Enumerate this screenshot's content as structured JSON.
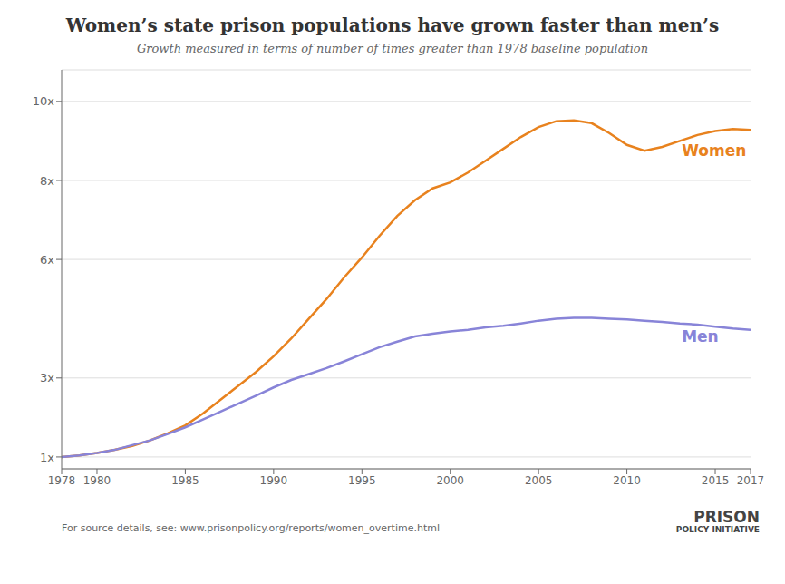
{
  "chart_data": {
    "type": "line",
    "title": "Women’s state prison populations have grown faster than men’s",
    "subtitle": "Growth measured in terms of number of times greater than 1978 baseline population",
    "footer": "For source details, see: www.prisonpolicy.org/reports/women_overtime.html",
    "logo": [
      "PRISON",
      "POLICY INITIATIVE"
    ],
    "x": [
      1978,
      1979,
      1980,
      1981,
      1982,
      1983,
      1984,
      1985,
      1986,
      1987,
      1988,
      1989,
      1990,
      1991,
      1992,
      1993,
      1994,
      1995,
      1996,
      1997,
      1998,
      1999,
      2000,
      2001,
      2002,
      2003,
      2004,
      2005,
      2006,
      2007,
      2008,
      2009,
      2010,
      2011,
      2012,
      2013,
      2014,
      2015,
      2016,
      2017
    ],
    "series": [
      {
        "name": "Women",
        "color": "#e8821e",
        "values": [
          1.0,
          1.04,
          1.1,
          1.18,
          1.28,
          1.42,
          1.6,
          1.8,
          2.1,
          2.45,
          2.8,
          3.15,
          3.55,
          4.0,
          4.5,
          5.0,
          5.55,
          6.05,
          6.6,
          7.1,
          7.5,
          7.8,
          7.95,
          8.2,
          8.5,
          8.8,
          9.1,
          9.35,
          9.5,
          9.52,
          9.45,
          9.2,
          8.9,
          8.75,
          8.85,
          9.0,
          9.15,
          9.25,
          9.3,
          9.28
        ]
      },
      {
        "name": "Men",
        "color": "#8884d8",
        "values": [
          1.0,
          1.04,
          1.1,
          1.18,
          1.3,
          1.42,
          1.58,
          1.75,
          1.95,
          2.15,
          2.35,
          2.55,
          2.76,
          2.95,
          3.1,
          3.25,
          3.42,
          3.6,
          3.78,
          3.92,
          4.05,
          4.12,
          4.18,
          4.22,
          4.28,
          4.32,
          4.38,
          4.45,
          4.5,
          4.52,
          4.52,
          4.5,
          4.48,
          4.45,
          4.42,
          4.38,
          4.35,
          4.3,
          4.25,
          4.22
        ]
      }
    ],
    "annotations": [
      {
        "text": "Women",
        "x": 2012.8,
        "y": 8.75,
        "color": "#e8821e"
      },
      {
        "text": "Men",
        "x": 2012.8,
        "y": 4.05,
        "color": "#8884d8"
      }
    ],
    "xlim": [
      1978,
      2017
    ],
    "xticks": [
      1978,
      1980,
      1985,
      1990,
      1995,
      2000,
      2005,
      2010,
      2015,
      2017
    ],
    "ylim": [
      0.7,
      10.8
    ],
    "yticks": [
      {
        "value": 1,
        "label": "1x"
      },
      {
        "value": 3,
        "label": "3x"
      },
      {
        "value": 6,
        "label": "6x"
      },
      {
        "value": 8,
        "label": "8x"
      },
      {
        "value": 10,
        "label": "10x"
      }
    ],
    "grid": true,
    "legend": false
  }
}
